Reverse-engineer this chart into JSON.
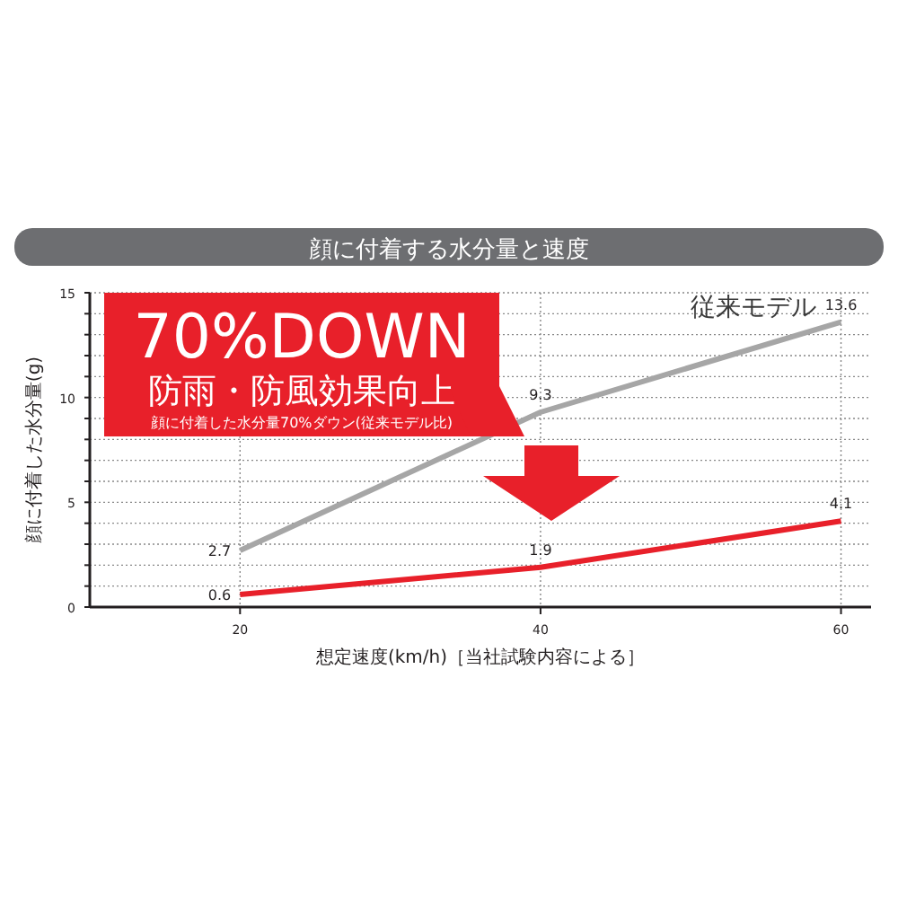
{
  "chart_data": {
    "type": "line",
    "title": "顔に付着する水分量と速度",
    "xlabel": "想定速度(km/h)［当社試験内容による］",
    "ylabel": "顔に付着した水分量(g)",
    "x": [
      20,
      40,
      60
    ],
    "series": [
      {
        "name": "従来モデル",
        "color": "#a6a6a6",
        "values": [
          2.7,
          9.3,
          13.6
        ]
      },
      {
        "color": "#e8202a",
        "values": [
          0.6,
          1.9,
          4.1
        ]
      }
    ],
    "data_labels": true,
    "xlim": [
      10,
      62
    ],
    "ylim": [
      0,
      15
    ],
    "xticks": [
      20,
      40,
      60
    ],
    "yticks": [
      0,
      {
        "value": 1,
        "label": null
      },
      {
        "value": 2,
        "label": null
      },
      {
        "value": 3,
        "label": null
      },
      {
        "value": 4,
        "label": null
      },
      5,
      {
        "value": 6,
        "label": null
      },
      {
        "value": 7,
        "label": null
      },
      {
        "value": 8,
        "label": null
      },
      {
        "value": 9,
        "label": null
      },
      10,
      {
        "value": 11,
        "label": null
      },
      {
        "value": 12,
        "label": null
      },
      {
        "value": 13,
        "label": null
      },
      {
        "value": 14,
        "label": null
      },
      15
    ],
    "grid": true,
    "legend": false,
    "marker": "none",
    "line_style": "solid",
    "annotations": [
      "70%DOWN",
      "防雨・防風効果向上",
      "顔に付着した水分量70%ダウン(従来モデル比)"
    ]
  }
}
